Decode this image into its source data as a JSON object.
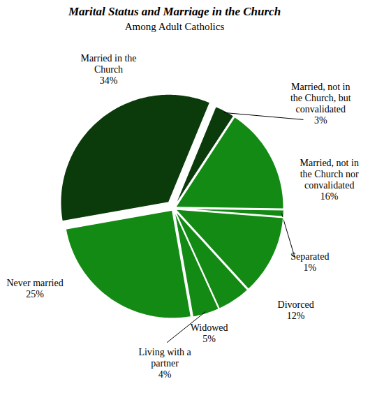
{
  "chart_data": {
    "type": "pie",
    "title": "Marital Status and Marriage in the Church",
    "subtitle": "Among Adult Catholics",
    "categories": [
      "Married in the Church",
      "Married, not in the Church, but convalidated",
      "Married, not in the Church nor convalidated",
      "Separated",
      "Divorced",
      "Widowed",
      "Living with a partner",
      "Never married"
    ],
    "values": [
      34,
      3,
      16,
      1,
      12,
      5,
      4,
      25
    ],
    "value_labels": [
      "34%",
      "3%",
      "16%",
      "1%",
      "12%",
      "5%",
      "4%",
      "25%"
    ],
    "colors": [
      "#0b3b0b",
      "#0b3b0b",
      "#138a13",
      "#138a13",
      "#138a13",
      "#138a13",
      "#138a13",
      "#138a13"
    ],
    "data_labels": true
  }
}
